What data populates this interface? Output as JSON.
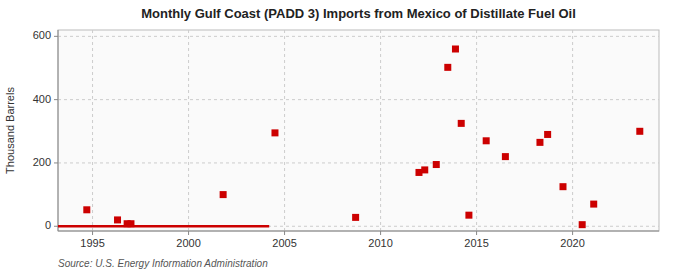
{
  "chart_data": {
    "type": "scatter",
    "title": "Monthly Gulf Coast (PADD 3) Imports from Mexico of Distillate Fuel Oil",
    "ylabel": "Thousand Barrels",
    "source": "Source: U.S. Energy Information Administration",
    "xlim": [
      1993.2,
      2024.5
    ],
    "ylim": [
      -15,
      620
    ],
    "xticks": [
      1995,
      2000,
      2005,
      2010,
      2015,
      2020
    ],
    "yticks": [
      0,
      200,
      400,
      600
    ],
    "grid": true,
    "series": [
      {
        "type": "line",
        "color": "#cc0000",
        "line_style": "solid",
        "x": [
          1993.2,
          2004.2
        ],
        "values": [
          0,
          0
        ]
      },
      {
        "type": "scatter",
        "color": "#cc0000",
        "marker": "square",
        "x": [
          1994.7,
          1996.3,
          1996.8,
          1997.0,
          2001.8,
          2004.5,
          2008.7,
          2012.0,
          2012.3,
          2012.9,
          2013.5,
          2013.9,
          2014.2,
          2014.6,
          2015.5,
          2016.5,
          2018.3,
          2018.7,
          2019.5,
          2020.5,
          2021.1,
          2023.5
        ],
        "values": [
          52,
          20,
          8,
          8,
          100,
          295,
          28,
          170,
          178,
          195,
          502,
          560,
          325,
          35,
          270,
          220,
          265,
          290,
          125,
          5,
          70,
          300
        ]
      }
    ]
  }
}
